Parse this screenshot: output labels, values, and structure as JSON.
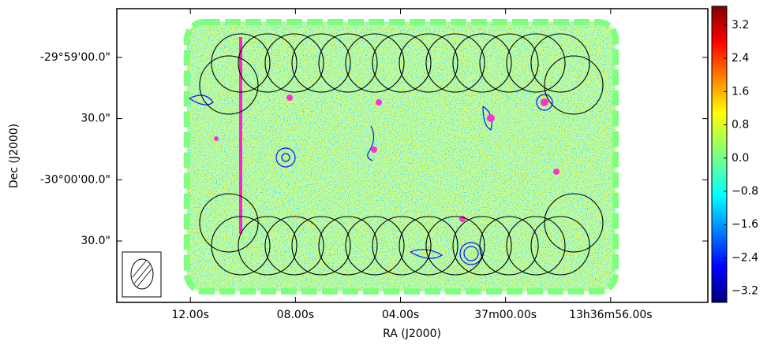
{
  "chart_data": {
    "type": "image",
    "xlabel": "RA (J2000)",
    "ylabel": "Dec (J2000)",
    "xlim": [
      74.8,
      52.3
    ],
    "xticks": [
      {
        "value": 72,
        "label": "12.00s"
      },
      {
        "value": 68,
        "label": "08.00s"
      },
      {
        "value": 64,
        "label": "04.00s"
      },
      {
        "value": 60,
        "label": "37m00.00s"
      },
      {
        "value": 56,
        "label": "13h36m56.00s"
      }
    ],
    "ylim": [
      -60.1,
      83.9
    ],
    "yticks": [
      {
        "value": 60,
        "label": "-29°59'00.0\""
      },
      {
        "value": 30,
        "label": "30.0\""
      },
      {
        "value": 0,
        "label": "-30°00'00.0\""
      },
      {
        "value": -30,
        "label": "30.0\""
      }
    ],
    "colormap": "jet",
    "clim": [
      -3.47,
      3.65
    ],
    "cticks": [
      3.2,
      2.4,
      1.6,
      0.8,
      {
        "value": 0,
        "label": "0.0"
      },
      {
        "value": -0.8,
        "label": "−0.8"
      },
      {
        "value": -1.6,
        "label": "−1.6"
      },
      {
        "value": -2.4,
        "label": "−2.4"
      },
      {
        "value": -3.2,
        "label": "−3.2"
      }
    ]
  }
}
